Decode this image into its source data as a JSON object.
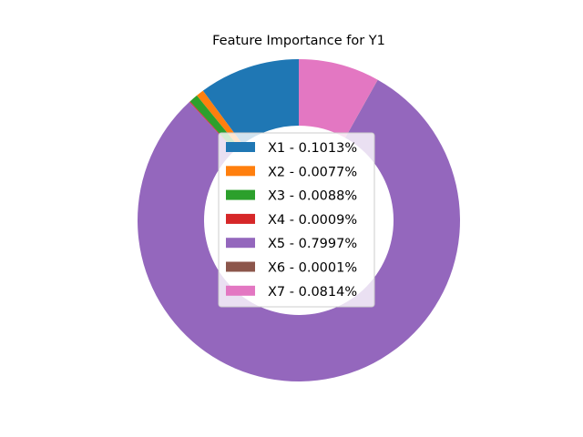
{
  "chart_data": {
    "type": "pie",
    "donut": true,
    "title": "Feature Importance for Y1",
    "start_angle_deg": 90,
    "direction": "counterclockwise",
    "legend_position": "center",
    "series": [
      {
        "name": "X1",
        "label": "X1 - 0.1013%",
        "value": 0.1013,
        "color": "#1f77b4"
      },
      {
        "name": "X2",
        "label": "X2 - 0.0077%",
        "value": 0.0077,
        "color": "#ff7f0e"
      },
      {
        "name": "X3",
        "label": "X3 - 0.0088%",
        "value": 0.0088,
        "color": "#2ca02c"
      },
      {
        "name": "X4",
        "label": "X4 - 0.0009%",
        "value": 0.0009,
        "color": "#d62728"
      },
      {
        "name": "X5",
        "label": "X5 - 0.7997%",
        "value": 0.7997,
        "color": "#9467bd"
      },
      {
        "name": "X6",
        "label": "X6 - 0.0001%",
        "value": 0.0001,
        "color": "#8c564b"
      },
      {
        "name": "X7",
        "label": "X7 - 0.0814%",
        "value": 0.0814,
        "color": "#e377c2"
      }
    ]
  }
}
